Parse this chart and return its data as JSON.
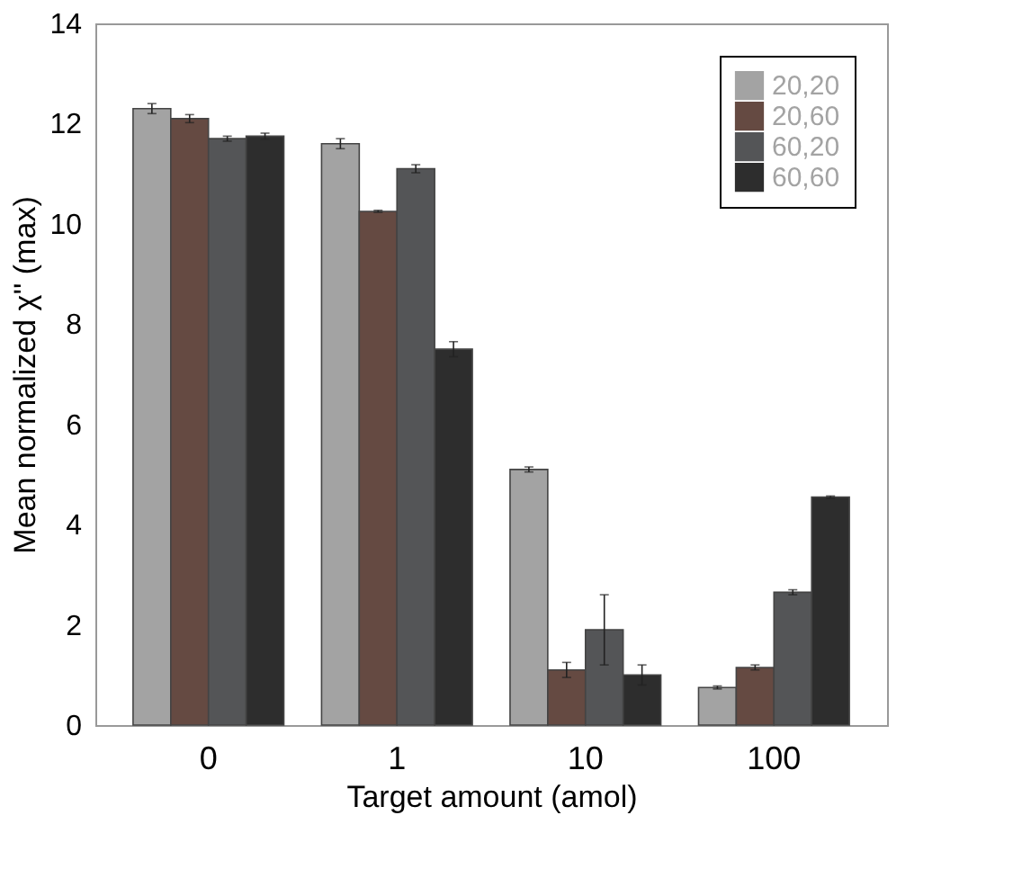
{
  "chart_data": {
    "type": "bar",
    "xlabel": "Target amount (amol)",
    "ylabel": "Mean normalized χ'' (max)",
    "categories": [
      "0",
      "1",
      "10",
      "100"
    ],
    "series": [
      {
        "name": "20,20",
        "color": "#a3a3a3",
        "values": [
          12.3,
          11.6,
          5.1,
          0.75
        ],
        "errors": [
          0.1,
          0.1,
          0.05,
          0.03
        ]
      },
      {
        "name": "20,60",
        "color": "#654a42",
        "values": [
          12.1,
          10.25,
          1.1,
          1.15
        ],
        "errors": [
          0.08,
          0.02,
          0.15,
          0.05
        ]
      },
      {
        "name": "60,20",
        "color": "#545557",
        "values": [
          11.7,
          11.1,
          1.9,
          2.65
        ],
        "errors": [
          0.05,
          0.08,
          0.7,
          0.05
        ]
      },
      {
        "name": "60,60",
        "color": "#2d2d2d",
        "values": [
          11.75,
          7.5,
          1.0,
          4.55
        ],
        "errors": [
          0.06,
          0.15,
          0.2,
          0.02
        ]
      }
    ],
    "ylim": [
      0,
      14
    ],
    "yticks": [
      0,
      2,
      4,
      6,
      8,
      10,
      12,
      14
    ],
    "grid": false,
    "legend": "top right"
  }
}
